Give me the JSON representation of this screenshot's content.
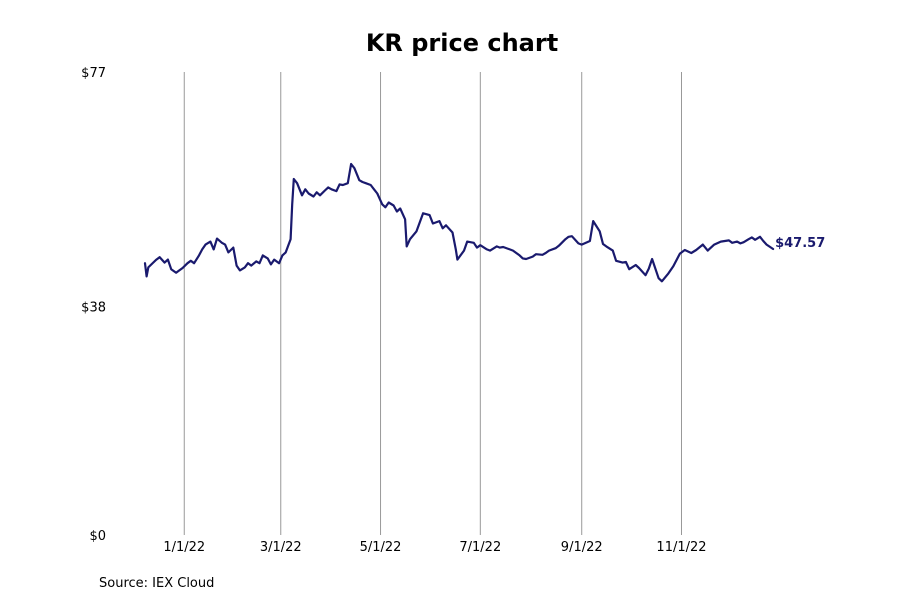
{
  "chart_data": {
    "type": "line",
    "title": "KR price chart",
    "source": "Source: IEX Cloud",
    "y_ticks": [
      {
        "value": 0,
        "label": "$0"
      },
      {
        "value": 38,
        "label": "$38"
      },
      {
        "value": 77,
        "label": "$77"
      }
    ],
    "x_ticks": [
      {
        "date": "2022-01-01",
        "label": "1/1/22"
      },
      {
        "date": "2022-03-01",
        "label": "3/1/22"
      },
      {
        "date": "2022-05-01",
        "label": "5/1/22"
      },
      {
        "date": "2022-07-01",
        "label": "7/1/22"
      },
      {
        "date": "2022-09-01",
        "label": "9/1/22"
      },
      {
        "date": "2022-11-01",
        "label": "11/1/22"
      }
    ],
    "xlim": [
      "2021-12-08",
      "2022-12-30"
    ],
    "ylim": [
      0,
      77
    ],
    "grid": "vertical",
    "last_price_label": "$47.57",
    "colors": {
      "line": "#1a1a6e",
      "grid": "#999999"
    },
    "series": [
      {
        "points": [
          [
            "2021-12-08",
            45.2
          ],
          [
            "2021-12-09",
            43.0
          ],
          [
            "2021-12-10",
            44.5
          ],
          [
            "2021-12-13",
            45.3
          ],
          [
            "2021-12-15",
            45.8
          ],
          [
            "2021-12-17",
            46.2
          ],
          [
            "2021-12-20",
            45.3
          ],
          [
            "2021-12-22",
            45.8
          ],
          [
            "2021-12-24",
            44.2
          ],
          [
            "2021-12-27",
            43.6
          ],
          [
            "2021-12-29",
            44.0
          ],
          [
            "2021-12-31",
            44.4
          ],
          [
            "2022-01-03",
            45.2
          ],
          [
            "2022-01-05",
            45.6
          ],
          [
            "2022-01-07",
            45.2
          ],
          [
            "2022-01-10",
            46.5
          ],
          [
            "2022-01-12",
            47.5
          ],
          [
            "2022-01-14",
            48.3
          ],
          [
            "2022-01-17",
            48.8
          ],
          [
            "2022-01-19",
            47.5
          ],
          [
            "2022-01-21",
            49.3
          ],
          [
            "2022-01-24",
            48.6
          ],
          [
            "2022-01-26",
            48.3
          ],
          [
            "2022-01-28",
            47.0
          ],
          [
            "2022-01-31",
            47.8
          ],
          [
            "2022-02-02",
            44.8
          ],
          [
            "2022-02-04",
            44.0
          ],
          [
            "2022-02-07",
            44.5
          ],
          [
            "2022-02-09",
            45.2
          ],
          [
            "2022-02-11",
            44.8
          ],
          [
            "2022-02-14",
            45.5
          ],
          [
            "2022-02-16",
            45.2
          ],
          [
            "2022-02-18",
            46.5
          ],
          [
            "2022-02-21",
            46.0
          ],
          [
            "2022-02-23",
            45.0
          ],
          [
            "2022-02-25",
            45.8
          ],
          [
            "2022-02-28",
            45.2
          ],
          [
            "2022-03-02",
            46.5
          ],
          [
            "2022-03-04",
            47.0
          ],
          [
            "2022-03-07",
            49.2
          ],
          [
            "2022-03-08",
            55.0
          ],
          [
            "2022-03-09",
            59.2
          ],
          [
            "2022-03-11",
            58.5
          ],
          [
            "2022-03-14",
            56.5
          ],
          [
            "2022-03-16",
            57.5
          ],
          [
            "2022-03-18",
            56.8
          ],
          [
            "2022-03-21",
            56.3
          ],
          [
            "2022-03-23",
            57.0
          ],
          [
            "2022-03-25",
            56.5
          ],
          [
            "2022-03-28",
            57.3
          ],
          [
            "2022-03-30",
            57.8
          ],
          [
            "2022-04-01",
            57.5
          ],
          [
            "2022-04-04",
            57.2
          ],
          [
            "2022-04-06",
            58.3
          ],
          [
            "2022-04-08",
            58.2
          ],
          [
            "2022-04-11",
            58.5
          ],
          [
            "2022-04-13",
            61.7
          ],
          [
            "2022-04-15",
            61.0
          ],
          [
            "2022-04-18",
            59.0
          ],
          [
            "2022-04-20",
            58.7
          ],
          [
            "2022-04-22",
            58.5
          ],
          [
            "2022-04-25",
            58.2
          ],
          [
            "2022-04-27",
            57.5
          ],
          [
            "2022-04-29",
            56.8
          ],
          [
            "2022-05-02",
            55.0
          ],
          [
            "2022-05-04",
            54.5
          ],
          [
            "2022-05-06",
            55.3
          ],
          [
            "2022-05-09",
            54.8
          ],
          [
            "2022-05-11",
            53.8
          ],
          [
            "2022-05-13",
            54.3
          ],
          [
            "2022-05-16",
            52.5
          ],
          [
            "2022-05-17",
            48.0
          ],
          [
            "2022-05-19",
            49.2
          ],
          [
            "2022-05-23",
            50.5
          ],
          [
            "2022-05-25",
            52.0
          ],
          [
            "2022-05-27",
            53.5
          ],
          [
            "2022-05-31",
            53.2
          ],
          [
            "2022-06-02",
            51.8
          ],
          [
            "2022-06-06",
            52.2
          ],
          [
            "2022-06-08",
            51.0
          ],
          [
            "2022-06-10",
            51.5
          ],
          [
            "2022-06-14",
            50.3
          ],
          [
            "2022-06-16",
            47.5
          ],
          [
            "2022-06-17",
            45.8
          ],
          [
            "2022-06-21",
            47.3
          ],
          [
            "2022-06-23",
            48.8
          ],
          [
            "2022-06-27",
            48.6
          ],
          [
            "2022-06-29",
            47.8
          ],
          [
            "2022-07-01",
            48.2
          ],
          [
            "2022-07-05",
            47.5
          ],
          [
            "2022-07-07",
            47.3
          ],
          [
            "2022-07-11",
            48.0
          ],
          [
            "2022-07-13",
            47.8
          ],
          [
            "2022-07-15",
            47.9
          ],
          [
            "2022-07-19",
            47.5
          ],
          [
            "2022-07-21",
            47.3
          ],
          [
            "2022-07-25",
            46.5
          ],
          [
            "2022-07-27",
            46.0
          ],
          [
            "2022-07-29",
            45.9
          ],
          [
            "2022-08-02",
            46.3
          ],
          [
            "2022-08-04",
            46.7
          ],
          [
            "2022-08-08",
            46.6
          ],
          [
            "2022-08-10",
            46.9
          ],
          [
            "2022-08-12",
            47.3
          ],
          [
            "2022-08-16",
            47.7
          ],
          [
            "2022-08-18",
            48.1
          ],
          [
            "2022-08-22",
            49.2
          ],
          [
            "2022-08-24",
            49.6
          ],
          [
            "2022-08-26",
            49.7
          ],
          [
            "2022-08-30",
            48.5
          ],
          [
            "2022-09-01",
            48.3
          ],
          [
            "2022-09-06",
            48.9
          ],
          [
            "2022-09-08",
            52.2
          ],
          [
            "2022-09-12",
            50.5
          ],
          [
            "2022-09-14",
            48.4
          ],
          [
            "2022-09-16",
            48.0
          ],
          [
            "2022-09-20",
            47.3
          ],
          [
            "2022-09-22",
            45.6
          ],
          [
            "2022-09-26",
            45.3
          ],
          [
            "2022-09-28",
            45.4
          ],
          [
            "2022-09-30",
            44.2
          ],
          [
            "2022-10-04",
            44.9
          ],
          [
            "2022-10-06",
            44.4
          ],
          [
            "2022-10-10",
            43.2
          ],
          [
            "2022-10-12",
            44.3
          ],
          [
            "2022-10-14",
            45.9
          ],
          [
            "2022-10-18",
            42.7
          ],
          [
            "2022-10-20",
            42.2
          ],
          [
            "2022-10-24",
            43.5
          ],
          [
            "2022-10-27",
            44.7
          ],
          [
            "2022-10-31",
            46.8
          ],
          [
            "2022-11-03",
            47.4
          ],
          [
            "2022-11-07",
            46.9
          ],
          [
            "2022-11-10",
            47.4
          ],
          [
            "2022-11-14",
            48.3
          ],
          [
            "2022-11-17",
            47.3
          ],
          [
            "2022-11-21",
            48.3
          ],
          [
            "2022-11-25",
            48.8
          ],
          [
            "2022-11-30",
            49.0
          ],
          [
            "2022-12-02",
            48.6
          ],
          [
            "2022-12-05",
            48.8
          ],
          [
            "2022-12-07",
            48.5
          ],
          [
            "2022-12-09",
            48.7
          ],
          [
            "2022-12-12",
            49.2
          ],
          [
            "2022-12-14",
            49.5
          ],
          [
            "2022-12-16",
            49.1
          ],
          [
            "2022-12-19",
            49.6
          ],
          [
            "2022-12-21",
            48.9
          ],
          [
            "2022-12-23",
            48.3
          ],
          [
            "2022-12-27",
            47.57
          ]
        ]
      }
    ]
  }
}
